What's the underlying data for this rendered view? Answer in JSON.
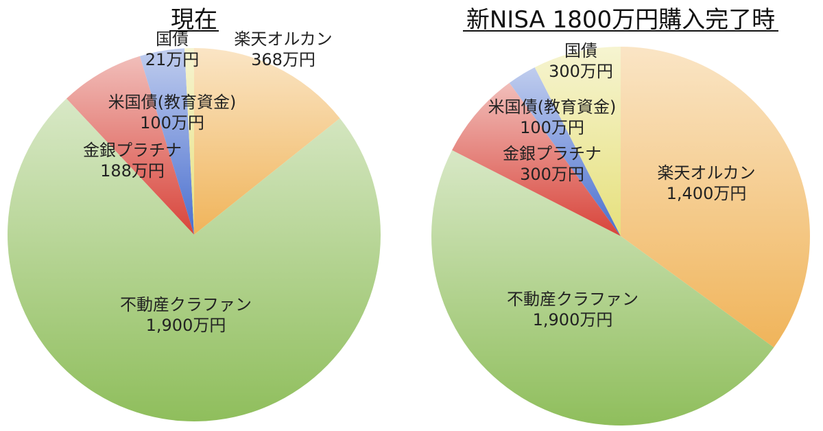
{
  "chart_data": [
    {
      "type": "pie",
      "title": "現在",
      "slices": [
        {
          "name": "楽天オルカン",
          "value_label": "368万円",
          "value": 368,
          "color": "#f0b45a"
        },
        {
          "name": "不動産クラファン",
          "value_label": "1,900万円",
          "value": 1900,
          "color": "#8fbe5c"
        },
        {
          "name": "金銀プラチナ",
          "value_label": "188万円",
          "value": 188,
          "color": "#d8443a"
        },
        {
          "name": "米国債(教育資金)",
          "value_label": "100万円",
          "value": 100,
          "color": "#4a6fcf"
        },
        {
          "name": "国債",
          "value_label": "21万円",
          "value": 21,
          "color": "#e6e07c"
        }
      ]
    },
    {
      "type": "pie",
      "title": "新NISA 1800万円購入完了時",
      "slices": [
        {
          "name": "楽天オルカン",
          "value_label": "1,400万円",
          "value": 1400,
          "color": "#f0b45a"
        },
        {
          "name": "不動産クラファン",
          "value_label": "1,900万円",
          "value": 1900,
          "color": "#8fbe5c"
        },
        {
          "name": "金銀プラチナ",
          "value_label": "300万円",
          "value": 300,
          "color": "#d8443a"
        },
        {
          "name": "米国債(教育資金)",
          "value_label": "100万円",
          "value": 100,
          "color": "#4a6fcf"
        },
        {
          "name": "国債",
          "value_label": "300万円",
          "value": 300,
          "color": "#e6e07c"
        }
      ]
    }
  ]
}
